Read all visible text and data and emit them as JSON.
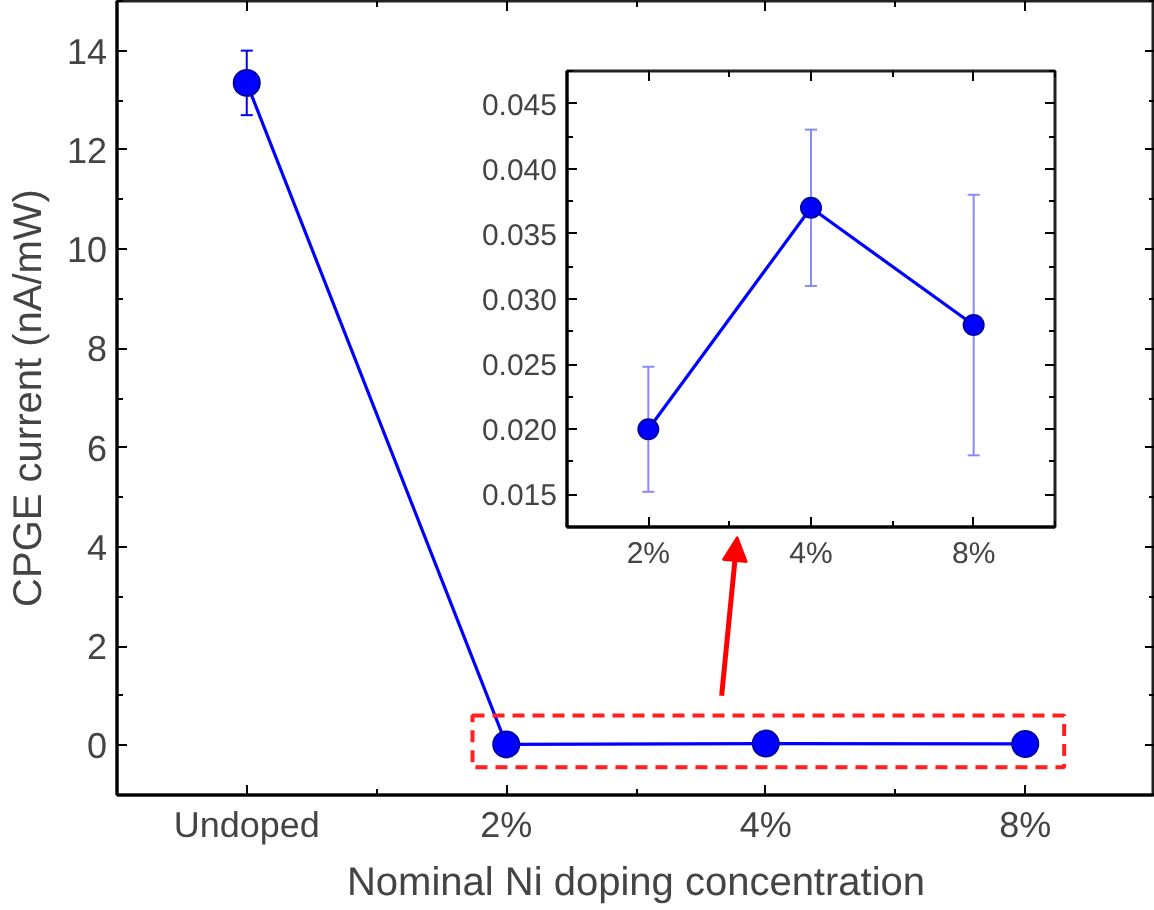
{
  "chart_data": [
    {
      "type": "line",
      "xlabel": "Nominal Ni doping concentration",
      "ylabel": "CPGE current (nA/mW)",
      "categories": [
        "Undoped",
        "2%",
        "4%",
        "8%"
      ],
      "series": [
        {
          "color": "#0000ff",
          "values": [
            13.35,
            0.02,
            0.037,
            0.028
          ],
          "errors": [
            [
              12.7,
              14.0
            ],
            null,
            null,
            null
          ]
        }
      ],
      "ylim": [
        -1,
        15
      ],
      "yticks": [
        0,
        2,
        4,
        6,
        8,
        10,
        12,
        14
      ],
      "marker": "circle",
      "grid": false
    },
    {
      "type": "line",
      "categories": [
        "2%",
        "4%",
        "8%"
      ],
      "series": [
        {
          "color": "#0000ff",
          "values": [
            0.02,
            0.037,
            0.028
          ],
          "errors": [
            [
              0.0152,
              0.0248
            ],
            [
              0.031,
              0.043
            ],
            [
              0.018,
              0.038
            ]
          ]
        }
      ],
      "ylim": [
        0.0125,
        0.0475
      ],
      "yticks": [
        {
          "value": 0.015,
          "label": "0.015"
        },
        {
          "value": 0.02,
          "label": "0.020"
        },
        {
          "value": 0.025,
          "label": "0.025"
        },
        {
          "value": 0.03,
          "label": "0.030"
        },
        {
          "value": 0.035,
          "label": "0.035"
        },
        {
          "value": 0.04,
          "label": "0.040"
        },
        {
          "value": 0.045,
          "label": "0.045"
        }
      ],
      "marker": "circle",
      "grid": false
    }
  ]
}
